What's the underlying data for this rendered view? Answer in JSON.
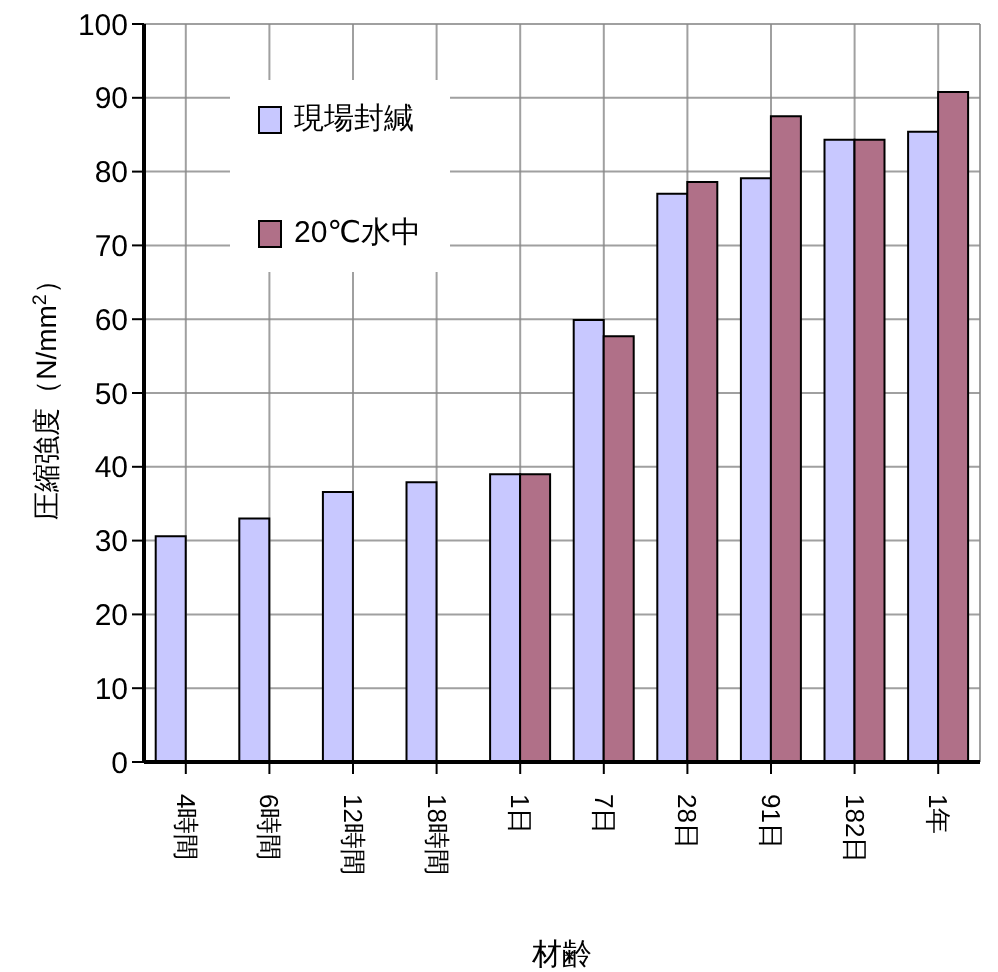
{
  "chart_data": {
    "type": "bar",
    "xlabel": "材齢",
    "ylabel": "圧縮強度（N/mm$^{2}$）",
    "categories": [
      "4時間",
      "6時間",
      "12時間",
      "18時間",
      "1日",
      "7日",
      "28日",
      "91日",
      "182日",
      "1年"
    ],
    "series": [
      {
        "name": "現場封緘",
        "color": "#c8c8ff",
        "values": [
          30.6,
          33.0,
          36.6,
          37.9,
          39.0,
          59.9,
          77.0,
          79.1,
          84.3,
          85.4
        ]
      },
      {
        "name": "20℃水中",
        "color": "#b07088",
        "values": [
          null,
          null,
          null,
          null,
          39.0,
          57.7,
          78.6,
          87.5,
          84.3,
          90.8
        ]
      }
    ],
    "ylim": [
      0,
      100
    ],
    "yticks": [
      0,
      10,
      20,
      30,
      40,
      50,
      60,
      70,
      80,
      90,
      100
    ],
    "grid": true,
    "legend": "top left"
  }
}
